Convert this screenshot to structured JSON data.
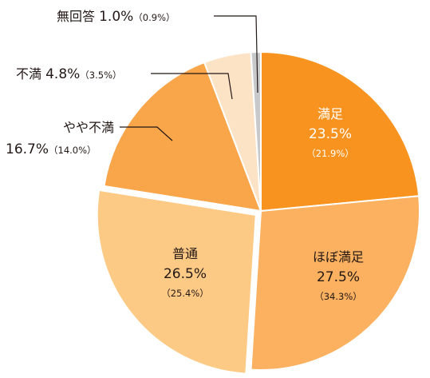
{
  "chart_data": {
    "type": "pie",
    "slices": [
      {
        "label": "満足",
        "value": 23.5,
        "value_text": "23.5%",
        "prev_text": "（21.9%）",
        "color": "#f7931e",
        "text_color": "#ffffff",
        "label_inside": true
      },
      {
        "label": "ほぼ満足",
        "value": 27.5,
        "value_text": "27.5%",
        "prev_text": "（34.3%）",
        "color": "#fbb15f",
        "text_color": "#231815",
        "label_inside": true
      },
      {
        "label": "普通",
        "value": 26.5,
        "value_text": "26.5%",
        "prev_text": "（25.4%）",
        "color": "#fdca86",
        "text_color": "#231815",
        "label_inside": true
      },
      {
        "label": "やや不満",
        "value": 16.7,
        "value_text": "16.7%",
        "prev_text": "（14.0%）",
        "color": "#f9a54a",
        "text_color": "#231815",
        "label_inside": false
      },
      {
        "label": "不満",
        "value": 4.8,
        "value_text": "4.8%",
        "prev_text": "（3.5%）",
        "color": "#fde3c6",
        "text_color": "#231815",
        "label_inside": false
      },
      {
        "label": "無回答",
        "value": 1.0,
        "value_text": "1.0%",
        "prev_text": "（0.9%）",
        "color": "#c8c9ca",
        "text_color": "#231815",
        "label_inside": false
      }
    ]
  }
}
